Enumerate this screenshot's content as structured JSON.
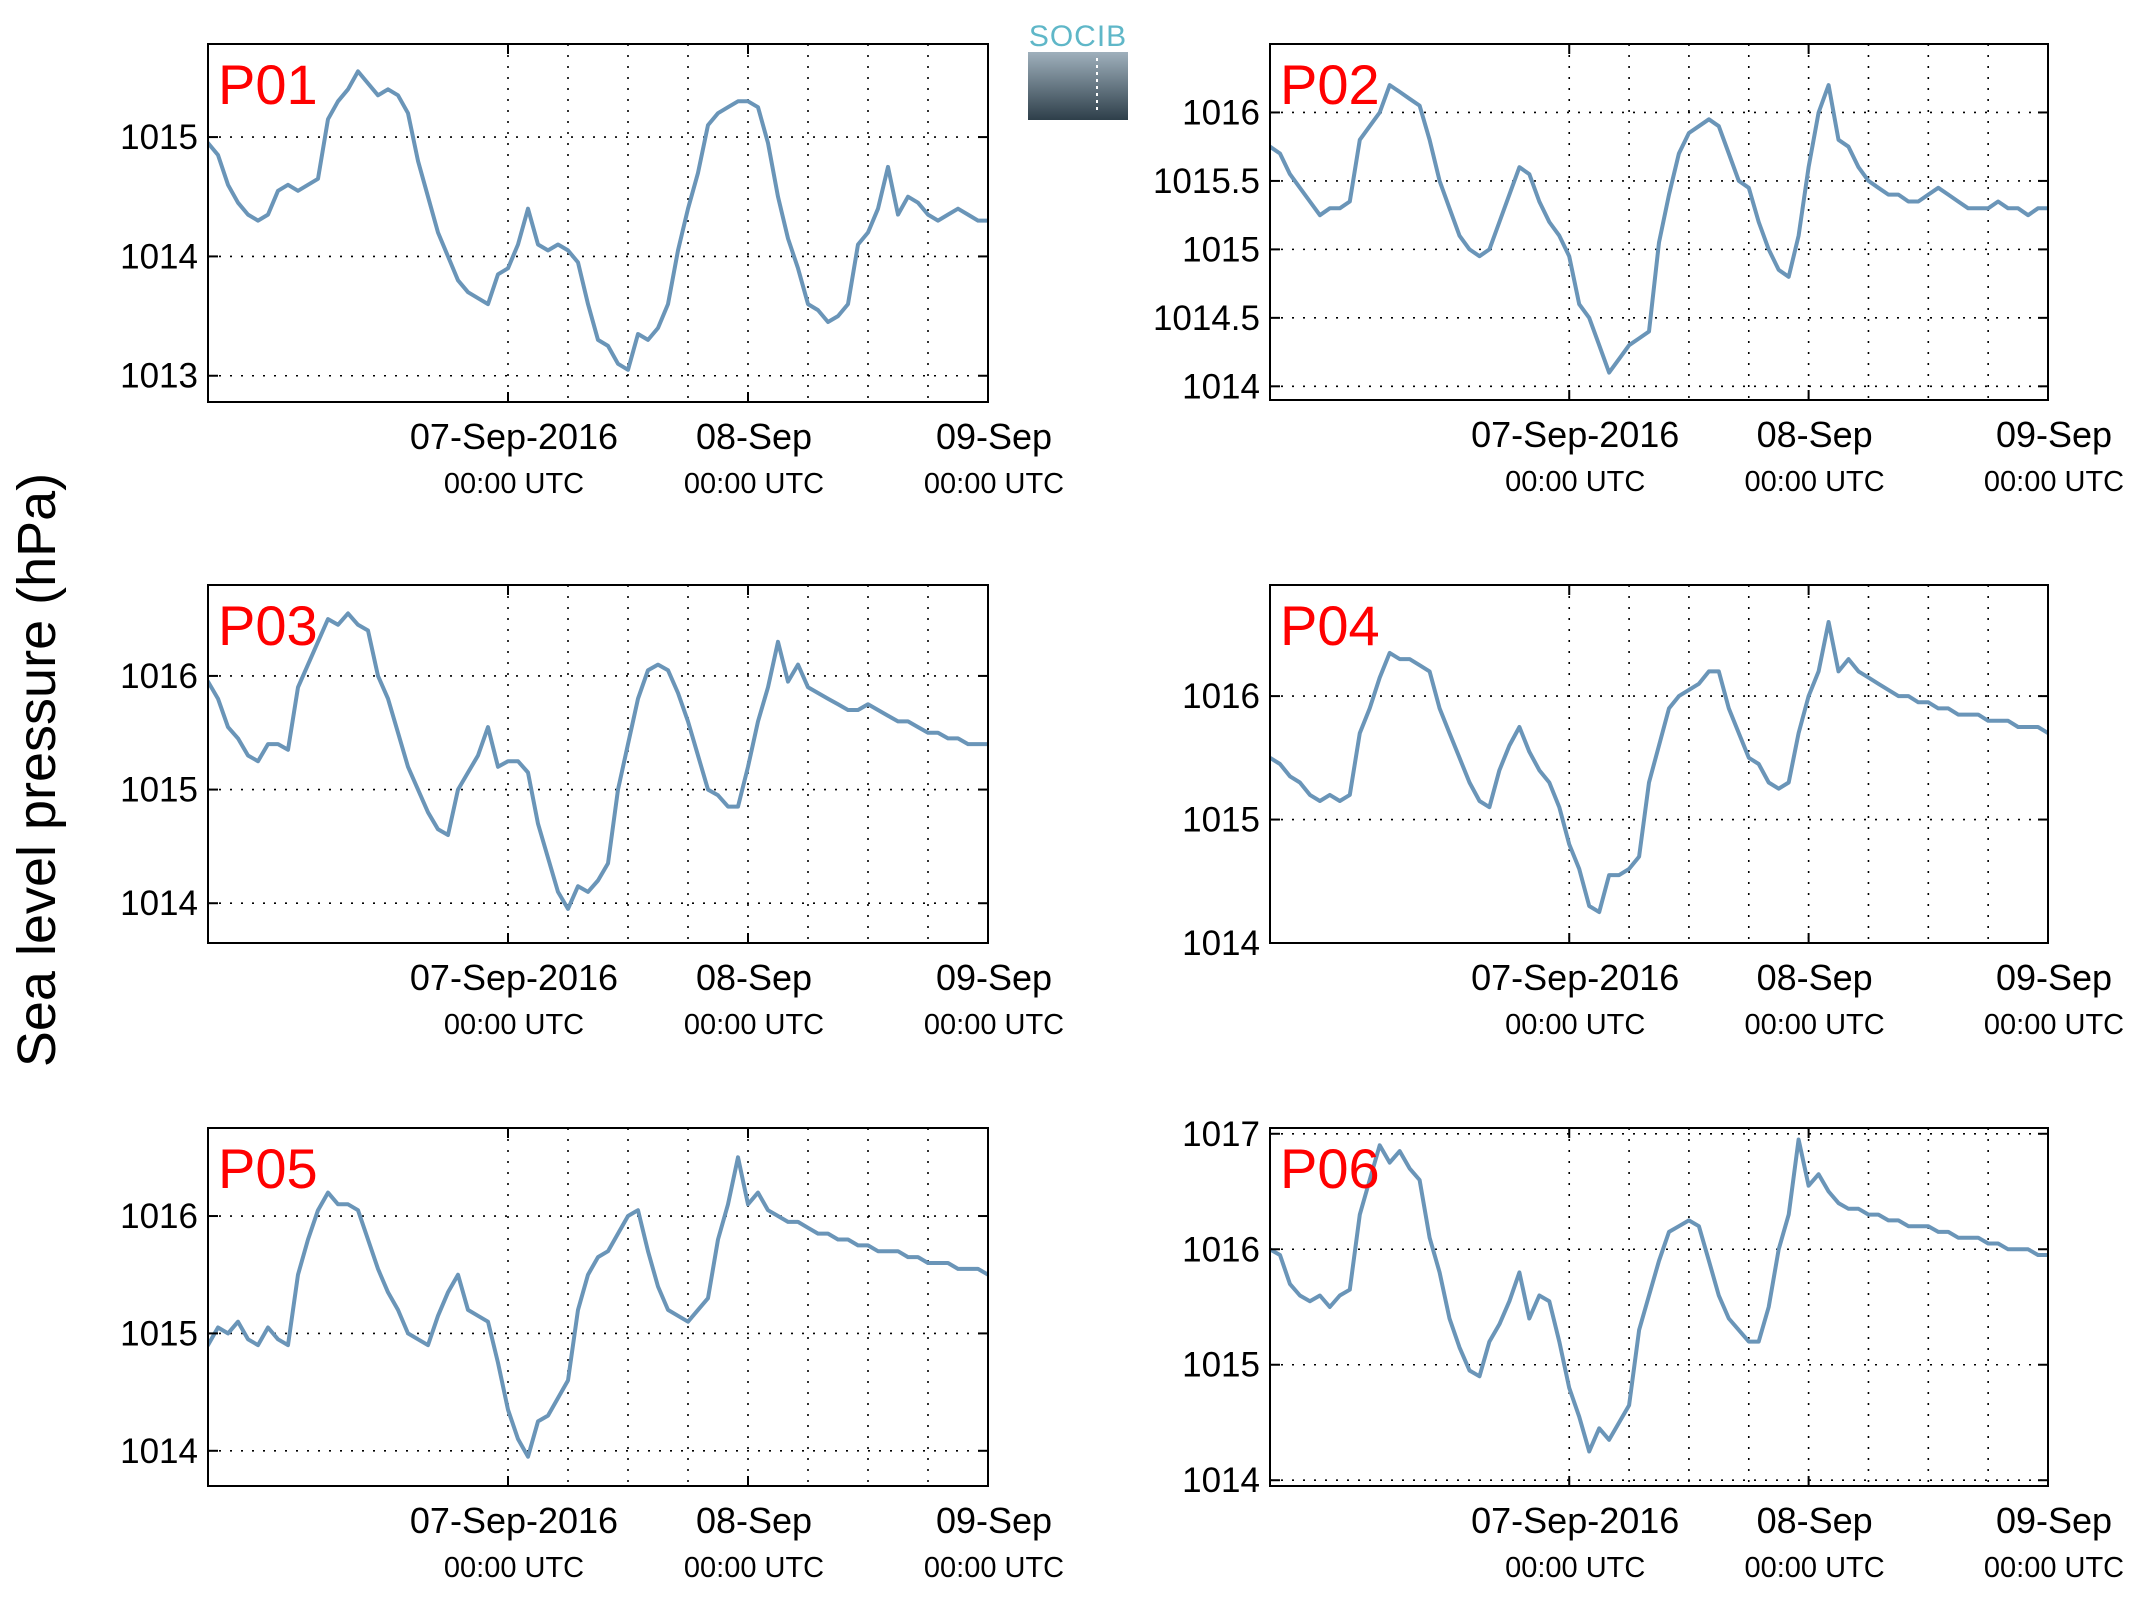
{
  "figure": {
    "ylabel": "Sea level pressure (hPa)",
    "logo": {
      "text": "SOCIB"
    }
  },
  "colors": {
    "series": "#6a95b8",
    "panel_label": "#ff0000",
    "grid": "#000000",
    "logo_text": "#5fb7c8",
    "logo_top": "#9fb0bc",
    "logo_bottom": "#2e3f4a"
  },
  "chart_data": [
    {
      "type": "line",
      "panel_label": "P01",
      "x_unit": "hours since 07-Sep-2016 00:00 UTC",
      "xlim": [
        -30,
        48
      ],
      "ylim": [
        1012.78,
        1015.78
      ],
      "yticks": [
        1013,
        1014,
        1015
      ],
      "ytick_labels": [
        "1013",
        "1014",
        "1015"
      ],
      "grid": true,
      "x": [
        -30,
        -29,
        -28,
        -27,
        -26,
        -25,
        -24,
        -23,
        -22,
        -21,
        -20,
        -19,
        -18,
        -17,
        -16,
        -15,
        -14,
        -13,
        -12,
        -11,
        -10,
        -9,
        -8,
        -7,
        -6,
        -5,
        -4,
        -3,
        -2,
        -1,
        0,
        1,
        2,
        3,
        4,
        5,
        6,
        7,
        8,
        9,
        10,
        11,
        12,
        13,
        14,
        15,
        16,
        17,
        18,
        19,
        20,
        21,
        22,
        23,
        24,
        25,
        26,
        27,
        28,
        29,
        30,
        31,
        32,
        33,
        34,
        35,
        36,
        37,
        38,
        39,
        40,
        41,
        42,
        43,
        44,
        45,
        46,
        47,
        48
      ],
      "values": [
        1014.95,
        1014.85,
        1014.6,
        1014.45,
        1014.35,
        1014.3,
        1014.35,
        1014.55,
        1014.6,
        1014.55,
        1014.6,
        1014.65,
        1015.15,
        1015.3,
        1015.4,
        1015.55,
        1015.45,
        1015.35,
        1015.4,
        1015.35,
        1015.2,
        1014.8,
        1014.5,
        1014.2,
        1014.0,
        1013.8,
        1013.7,
        1013.65,
        1013.6,
        1013.85,
        1013.9,
        1014.1,
        1014.4,
        1014.1,
        1014.05,
        1014.1,
        1014.05,
        1013.95,
        1013.6,
        1013.3,
        1013.25,
        1013.1,
        1013.05,
        1013.35,
        1013.3,
        1013.4,
        1013.6,
        1014.05,
        1014.4,
        1014.7,
        1015.1,
        1015.2,
        1015.25,
        1015.3,
        1015.3,
        1015.25,
        1014.95,
        1014.5,
        1014.15,
        1013.9,
        1013.6,
        1013.55,
        1013.45,
        1013.5,
        1013.6,
        1014.1,
        1014.2,
        1014.4,
        1014.75,
        1014.35,
        1014.5,
        1014.45,
        1014.35,
        1014.3,
        1014.35,
        1014.4,
        1014.35,
        1014.3,
        1014.3
      ]
    },
    {
      "type": "line",
      "panel_label": "P02",
      "x_unit": "hours since 07-Sep-2016 00:00 UTC",
      "xlim": [
        -30,
        48
      ],
      "ylim": [
        1013.9,
        1016.5
      ],
      "yticks": [
        1014,
        1014.5,
        1015,
        1015.5,
        1016
      ],
      "ytick_labels": [
        "1014",
        "1014.5",
        "1015",
        "1015.5",
        "1016"
      ],
      "grid": true,
      "x": [
        -30,
        -29,
        -28,
        -27,
        -26,
        -25,
        -24,
        -23,
        -22,
        -21,
        -20,
        -19,
        -18,
        -17,
        -16,
        -15,
        -14,
        -13,
        -12,
        -11,
        -10,
        -9,
        -8,
        -7,
        -6,
        -5,
        -4,
        -3,
        -2,
        -1,
        0,
        1,
        2,
        3,
        4,
        5,
        6,
        7,
        8,
        9,
        10,
        11,
        12,
        13,
        14,
        15,
        16,
        17,
        18,
        19,
        20,
        21,
        22,
        23,
        24,
        25,
        26,
        27,
        28,
        29,
        30,
        31,
        32,
        33,
        34,
        35,
        36,
        37,
        38,
        39,
        40,
        41,
        42,
        43,
        44,
        45,
        46,
        47,
        48
      ],
      "values": [
        1015.75,
        1015.7,
        1015.55,
        1015.45,
        1015.35,
        1015.25,
        1015.3,
        1015.3,
        1015.35,
        1015.8,
        1015.9,
        1016.0,
        1016.2,
        1016.15,
        1016.1,
        1016.05,
        1015.8,
        1015.5,
        1015.3,
        1015.1,
        1015.0,
        1014.95,
        1015.0,
        1015.2,
        1015.4,
        1015.6,
        1015.55,
        1015.35,
        1015.2,
        1015.1,
        1014.95,
        1014.6,
        1014.5,
        1014.3,
        1014.1,
        1014.2,
        1014.3,
        1014.35,
        1014.4,
        1015.05,
        1015.4,
        1015.7,
        1015.85,
        1015.9,
        1015.95,
        1015.9,
        1015.7,
        1015.5,
        1015.45,
        1015.2,
        1015.0,
        1014.85,
        1014.8,
        1015.1,
        1015.6,
        1016.0,
        1016.2,
        1015.8,
        1015.75,
        1015.6,
        1015.5,
        1015.45,
        1015.4,
        1015.4,
        1015.35,
        1015.35,
        1015.4,
        1015.45,
        1015.4,
        1015.35,
        1015.3,
        1015.3,
        1015.3,
        1015.35,
        1015.3,
        1015.3,
        1015.25,
        1015.3,
        1015.3
      ]
    },
    {
      "type": "line",
      "panel_label": "P03",
      "x_unit": "hours since 07-Sep-2016 00:00 UTC",
      "xlim": [
        -30,
        48
      ],
      "ylim": [
        1013.65,
        1016.8
      ],
      "yticks": [
        1014,
        1015,
        1016
      ],
      "ytick_labels": [
        "1014",
        "1015",
        "1016"
      ],
      "grid": true,
      "x": [
        -30,
        -29,
        -28,
        -27,
        -26,
        -25,
        -24,
        -23,
        -22,
        -21,
        -20,
        -19,
        -18,
        -17,
        -16,
        -15,
        -14,
        -13,
        -12,
        -11,
        -10,
        -9,
        -8,
        -7,
        -6,
        -5,
        -4,
        -3,
        -2,
        -1,
        0,
        1,
        2,
        3,
        4,
        5,
        6,
        7,
        8,
        9,
        10,
        11,
        12,
        13,
        14,
        15,
        16,
        17,
        18,
        19,
        20,
        21,
        22,
        23,
        24,
        25,
        26,
        27,
        28,
        29,
        30,
        31,
        32,
        33,
        34,
        35,
        36,
        37,
        38,
        39,
        40,
        41,
        42,
        43,
        44,
        45,
        46,
        47,
        48
      ],
      "values": [
        1015.95,
        1015.8,
        1015.55,
        1015.45,
        1015.3,
        1015.25,
        1015.4,
        1015.4,
        1015.35,
        1015.9,
        1016.1,
        1016.3,
        1016.5,
        1016.45,
        1016.55,
        1016.45,
        1016.4,
        1016.0,
        1015.8,
        1015.5,
        1015.2,
        1015.0,
        1014.8,
        1014.65,
        1014.6,
        1015.0,
        1015.15,
        1015.3,
        1015.55,
        1015.2,
        1015.25,
        1015.25,
        1015.15,
        1014.7,
        1014.4,
        1014.1,
        1013.95,
        1014.15,
        1014.1,
        1014.2,
        1014.35,
        1015.0,
        1015.4,
        1015.8,
        1016.05,
        1016.1,
        1016.05,
        1015.85,
        1015.6,
        1015.3,
        1015.0,
        1014.95,
        1014.85,
        1014.85,
        1015.2,
        1015.6,
        1015.9,
        1016.3,
        1015.95,
        1016.1,
        1015.9,
        1015.85,
        1015.8,
        1015.75,
        1015.7,
        1015.7,
        1015.75,
        1015.7,
        1015.65,
        1015.6,
        1015.6,
        1015.55,
        1015.5,
        1015.5,
        1015.45,
        1015.45,
        1015.4,
        1015.4,
        1015.4
      ]
    },
    {
      "type": "line",
      "panel_label": "P04",
      "x_unit": "hours since 07-Sep-2016 00:00 UTC",
      "xlim": [
        -30,
        48
      ],
      "ylim": [
        1014.0,
        1016.9
      ],
      "yticks": [
        1014,
        1015,
        1016
      ],
      "ytick_labels": [
        "1014",
        "1015",
        "1016"
      ],
      "grid": true,
      "x": [
        -30,
        -29,
        -28,
        -27,
        -26,
        -25,
        -24,
        -23,
        -22,
        -21,
        -20,
        -19,
        -18,
        -17,
        -16,
        -15,
        -14,
        -13,
        -12,
        -11,
        -10,
        -9,
        -8,
        -7,
        -6,
        -5,
        -4,
        -3,
        -2,
        -1,
        0,
        1,
        2,
        3,
        4,
        5,
        6,
        7,
        8,
        9,
        10,
        11,
        12,
        13,
        14,
        15,
        16,
        17,
        18,
        19,
        20,
        21,
        22,
        23,
        24,
        25,
        26,
        27,
        28,
        29,
        30,
        31,
        32,
        33,
        34,
        35,
        36,
        37,
        38,
        39,
        40,
        41,
        42,
        43,
        44,
        45,
        46,
        47,
        48
      ],
      "values": [
        1015.5,
        1015.45,
        1015.35,
        1015.3,
        1015.2,
        1015.15,
        1015.2,
        1015.15,
        1015.2,
        1015.7,
        1015.9,
        1016.15,
        1016.35,
        1016.3,
        1016.3,
        1016.25,
        1016.2,
        1015.9,
        1015.7,
        1015.5,
        1015.3,
        1015.15,
        1015.1,
        1015.4,
        1015.6,
        1015.75,
        1015.55,
        1015.4,
        1015.3,
        1015.1,
        1014.8,
        1014.6,
        1014.3,
        1014.25,
        1014.55,
        1014.55,
        1014.6,
        1014.7,
        1015.3,
        1015.6,
        1015.9,
        1016.0,
        1016.05,
        1016.1,
        1016.2,
        1016.2,
        1015.9,
        1015.7,
        1015.5,
        1015.45,
        1015.3,
        1015.25,
        1015.3,
        1015.7,
        1016.0,
        1016.2,
        1016.6,
        1016.2,
        1016.3,
        1016.2,
        1016.15,
        1016.1,
        1016.05,
        1016.0,
        1016.0,
        1015.95,
        1015.95,
        1015.9,
        1015.9,
        1015.85,
        1015.85,
        1015.85,
        1015.8,
        1015.8,
        1015.8,
        1015.75,
        1015.75,
        1015.75,
        1015.7
      ]
    },
    {
      "type": "line",
      "panel_label": "P05",
      "x_unit": "hours since 07-Sep-2016 00:00 UTC",
      "xlim": [
        -30,
        48
      ],
      "ylim": [
        1013.7,
        1016.75
      ],
      "yticks": [
        1014,
        1015,
        1016
      ],
      "ytick_labels": [
        "1014",
        "1015",
        "1016"
      ],
      "grid": true,
      "x": [
        -30,
        -29,
        -28,
        -27,
        -26,
        -25,
        -24,
        -23,
        -22,
        -21,
        -20,
        -19,
        -18,
        -17,
        -16,
        -15,
        -14,
        -13,
        -12,
        -11,
        -10,
        -9,
        -8,
        -7,
        -6,
        -5,
        -4,
        -3,
        -2,
        -1,
        0,
        1,
        2,
        3,
        4,
        5,
        6,
        7,
        8,
        9,
        10,
        11,
        12,
        13,
        14,
        15,
        16,
        17,
        18,
        19,
        20,
        21,
        22,
        23,
        24,
        25,
        26,
        27,
        28,
        29,
        30,
        31,
        32,
        33,
        34,
        35,
        36,
        37,
        38,
        39,
        40,
        41,
        42,
        43,
        44,
        45,
        46,
        47,
        48
      ],
      "values": [
        1014.9,
        1015.05,
        1015.0,
        1015.1,
        1014.95,
        1014.9,
        1015.05,
        1014.95,
        1014.9,
        1015.5,
        1015.8,
        1016.05,
        1016.2,
        1016.1,
        1016.1,
        1016.05,
        1015.8,
        1015.55,
        1015.35,
        1015.2,
        1015.0,
        1014.95,
        1014.9,
        1015.15,
        1015.35,
        1015.5,
        1015.2,
        1015.15,
        1015.1,
        1014.75,
        1014.35,
        1014.1,
        1013.95,
        1014.25,
        1014.3,
        1014.45,
        1014.6,
        1015.2,
        1015.5,
        1015.65,
        1015.7,
        1015.85,
        1016.0,
        1016.05,
        1015.7,
        1015.4,
        1015.2,
        1015.15,
        1015.1,
        1015.2,
        1015.3,
        1015.8,
        1016.1,
        1016.5,
        1016.1,
        1016.2,
        1016.05,
        1016.0,
        1015.95,
        1015.95,
        1015.9,
        1015.85,
        1015.85,
        1015.8,
        1015.8,
        1015.75,
        1015.75,
        1015.7,
        1015.7,
        1015.7,
        1015.65,
        1015.65,
        1015.6,
        1015.6,
        1015.6,
        1015.55,
        1015.55,
        1015.55,
        1015.5
      ]
    },
    {
      "type": "line",
      "panel_label": "P06",
      "x_unit": "hours since 07-Sep-2016 00:00 UTC",
      "xlim": [
        -30,
        48
      ],
      "ylim": [
        1013.95,
        1017.05
      ],
      "yticks": [
        1014,
        1015,
        1016,
        1017
      ],
      "ytick_labels": [
        "1014",
        "1015",
        "1016",
        "1017"
      ],
      "grid": true,
      "x": [
        -30,
        -29,
        -28,
        -27,
        -26,
        -25,
        -24,
        -23,
        -22,
        -21,
        -20,
        -19,
        -18,
        -17,
        -16,
        -15,
        -14,
        -13,
        -12,
        -11,
        -10,
        -9,
        -8,
        -7,
        -6,
        -5,
        -4,
        -3,
        -2,
        -1,
        0,
        1,
        2,
        3,
        4,
        5,
        6,
        7,
        8,
        9,
        10,
        11,
        12,
        13,
        14,
        15,
        16,
        17,
        18,
        19,
        20,
        21,
        22,
        23,
        24,
        25,
        26,
        27,
        28,
        29,
        30,
        31,
        32,
        33,
        34,
        35,
        36,
        37,
        38,
        39,
        40,
        41,
        42,
        43,
        44,
        45,
        46,
        47,
        48
      ],
      "values": [
        1016.0,
        1015.95,
        1015.7,
        1015.6,
        1015.55,
        1015.6,
        1015.5,
        1015.6,
        1015.65,
        1016.3,
        1016.6,
        1016.9,
        1016.75,
        1016.85,
        1016.7,
        1016.6,
        1016.1,
        1015.8,
        1015.4,
        1015.15,
        1014.95,
        1014.9,
        1015.2,
        1015.35,
        1015.55,
        1015.8,
        1015.4,
        1015.6,
        1015.55,
        1015.2,
        1014.8,
        1014.55,
        1014.25,
        1014.45,
        1014.35,
        1014.5,
        1014.65,
        1015.3,
        1015.6,
        1015.9,
        1016.15,
        1016.2,
        1016.25,
        1016.2,
        1015.9,
        1015.6,
        1015.4,
        1015.3,
        1015.2,
        1015.2,
        1015.5,
        1016.0,
        1016.3,
        1016.95,
        1016.55,
        1016.65,
        1016.5,
        1016.4,
        1016.35,
        1016.35,
        1016.3,
        1016.3,
        1016.25,
        1016.25,
        1016.2,
        1016.2,
        1016.2,
        1016.15,
        1016.15,
        1016.1,
        1016.1,
        1016.1,
        1016.05,
        1016.05,
        1016.0,
        1016.0,
        1016.0,
        1015.95,
        1015.95
      ]
    }
  ],
  "x_ticks": [
    {
      "x": 0,
      "line1": "07-Sep-2016",
      "line2": "00:00 UTC"
    },
    {
      "x": 24,
      "line1": "08-Sep",
      "line2": "00:00 UTC"
    },
    {
      "x": 48,
      "line1": "09-Sep",
      "line2": "00:00 UTC"
    }
  ],
  "x_grid": [
    0,
    6,
    12,
    18,
    24,
    30,
    36,
    42,
    48
  ]
}
